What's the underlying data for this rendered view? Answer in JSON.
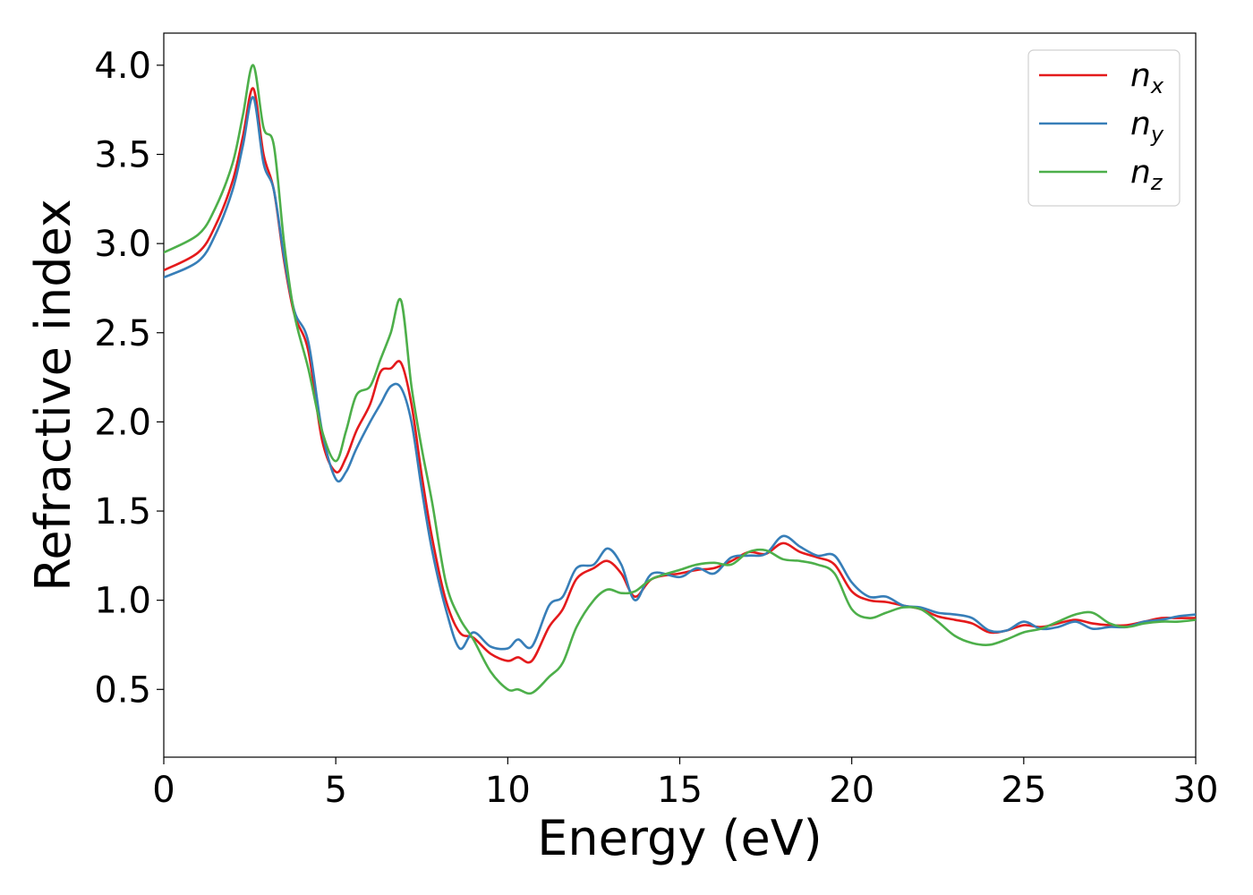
{
  "chart_data": {
    "type": "line",
    "title": "",
    "xlabel": "Energy (eV)",
    "ylabel": "Refractive index",
    "xlim": [
      0,
      30
    ],
    "ylim": [
      0.12,
      4.18
    ],
    "xticks": [
      "0",
      "5",
      "10",
      "15",
      "20",
      "25",
      "30"
    ],
    "yticks": [
      "0.5",
      "1.0",
      "1.5",
      "2.0",
      "2.5",
      "3.0",
      "3.5",
      "4.0"
    ],
    "grid": false,
    "legend_position": "top-right",
    "series": [
      {
        "name": "n",
        "subscript": "x",
        "color": "#e41a1c",
        "x": [
          0,
          1,
          1.5,
          2,
          2.3,
          2.6,
          2.9,
          3.2,
          3.5,
          3.8,
          4.2,
          4.6,
          5.0,
          5.3,
          5.6,
          6.0,
          6.3,
          6.6,
          6.9,
          7.2,
          7.5,
          7.8,
          8.2,
          8.6,
          9.0,
          9.5,
          10.0,
          10.3,
          10.7,
          11.2,
          11.6,
          12.0,
          12.5,
          12.9,
          13.3,
          13.7,
          14.2,
          15.0,
          15.5,
          16.0,
          16.5,
          17.0,
          17.5,
          18.0,
          18.5,
          19.0,
          19.5,
          20.0,
          20.5,
          21.0,
          21.5,
          22.0,
          22.5,
          23.0,
          23.5,
          24.0,
          24.5,
          25.0,
          25.5,
          26.0,
          26.5,
          27.0,
          27.5,
          28.0,
          28.5,
          29.0,
          29.5,
          30.0
        ],
        "y": [
          2.85,
          2.95,
          3.1,
          3.35,
          3.6,
          3.87,
          3.5,
          3.3,
          2.9,
          2.6,
          2.4,
          1.9,
          1.72,
          1.8,
          1.95,
          2.1,
          2.28,
          2.3,
          2.33,
          2.1,
          1.7,
          1.35,
          1.0,
          0.82,
          0.79,
          0.7,
          0.66,
          0.68,
          0.66,
          0.85,
          0.95,
          1.12,
          1.18,
          1.22,
          1.15,
          1.02,
          1.12,
          1.15,
          1.17,
          1.18,
          1.22,
          1.27,
          1.26,
          1.32,
          1.27,
          1.24,
          1.2,
          1.05,
          1.0,
          0.99,
          0.97,
          0.95,
          0.91,
          0.89,
          0.87,
          0.82,
          0.83,
          0.86,
          0.85,
          0.87,
          0.89,
          0.87,
          0.86,
          0.86,
          0.88,
          0.9,
          0.9,
          0.9
        ]
      },
      {
        "name": "n",
        "subscript": "y",
        "color": "#377eb8",
        "x": [
          0,
          1,
          1.5,
          2,
          2.3,
          2.6,
          2.9,
          3.2,
          3.5,
          3.8,
          4.2,
          4.6,
          5.0,
          5.3,
          5.6,
          6.0,
          6.3,
          6.6,
          6.9,
          7.2,
          7.5,
          7.8,
          8.2,
          8.6,
          9.0,
          9.5,
          10.0,
          10.3,
          10.7,
          11.2,
          11.6,
          12.0,
          12.5,
          12.9,
          13.3,
          13.7,
          14.2,
          15.0,
          15.5,
          16.0,
          16.5,
          17.0,
          17.5,
          18.0,
          18.5,
          19.0,
          19.5,
          20.0,
          20.5,
          21.0,
          21.5,
          22.0,
          22.5,
          23.0,
          23.5,
          24.0,
          24.5,
          25.0,
          25.5,
          26.0,
          26.5,
          27.0,
          27.5,
          28.0,
          28.5,
          29.0,
          29.5,
          30.0
        ],
        "y": [
          2.81,
          2.9,
          3.05,
          3.3,
          3.55,
          3.82,
          3.45,
          3.3,
          2.92,
          2.62,
          2.45,
          1.95,
          1.68,
          1.72,
          1.85,
          2.0,
          2.1,
          2.2,
          2.19,
          2.0,
          1.62,
          1.28,
          0.95,
          0.73,
          0.82,
          0.74,
          0.73,
          0.78,
          0.74,
          0.97,
          1.02,
          1.18,
          1.2,
          1.29,
          1.2,
          1.0,
          1.15,
          1.13,
          1.18,
          1.15,
          1.24,
          1.25,
          1.26,
          1.36,
          1.3,
          1.25,
          1.25,
          1.1,
          1.02,
          1.02,
          0.97,
          0.96,
          0.93,
          0.92,
          0.9,
          0.83,
          0.83,
          0.88,
          0.84,
          0.85,
          0.88,
          0.84,
          0.85,
          0.85,
          0.88,
          0.89,
          0.91,
          0.92
        ]
      },
      {
        "name": "n",
        "subscript": "z",
        "color": "#4daf4a",
        "x": [
          0,
          1,
          1.5,
          2,
          2.3,
          2.6,
          2.9,
          3.2,
          3.5,
          3.8,
          4.2,
          4.6,
          5.0,
          5.3,
          5.6,
          6.0,
          6.3,
          6.6,
          6.9,
          7.2,
          7.5,
          7.8,
          8.2,
          8.6,
          9.0,
          9.5,
          10.0,
          10.3,
          10.7,
          11.2,
          11.6,
          12.0,
          12.5,
          12.9,
          13.3,
          13.7,
          14.2,
          15.0,
          15.5,
          16.0,
          16.5,
          17.0,
          17.5,
          18.0,
          18.5,
          19.0,
          19.5,
          20.0,
          20.5,
          21.0,
          21.5,
          22.0,
          22.5,
          23.0,
          23.5,
          24.0,
          24.5,
          25.0,
          25.5,
          26.0,
          26.5,
          27.0,
          27.5,
          28.0,
          28.5,
          29.0,
          29.5,
          30.0
        ],
        "y": [
          2.95,
          3.05,
          3.2,
          3.45,
          3.72,
          4.0,
          3.65,
          3.55,
          3.0,
          2.6,
          2.3,
          1.95,
          1.78,
          1.95,
          2.15,
          2.2,
          2.35,
          2.5,
          2.68,
          2.2,
          1.85,
          1.55,
          1.1,
          0.9,
          0.78,
          0.6,
          0.5,
          0.5,
          0.48,
          0.57,
          0.65,
          0.85,
          1.0,
          1.06,
          1.04,
          1.05,
          1.12,
          1.17,
          1.2,
          1.21,
          1.2,
          1.27,
          1.28,
          1.23,
          1.22,
          1.2,
          1.15,
          0.95,
          0.9,
          0.93,
          0.96,
          0.95,
          0.88,
          0.8,
          0.76,
          0.75,
          0.78,
          0.82,
          0.84,
          0.88,
          0.92,
          0.93,
          0.87,
          0.85,
          0.87,
          0.88,
          0.88,
          0.89
        ]
      }
    ]
  }
}
